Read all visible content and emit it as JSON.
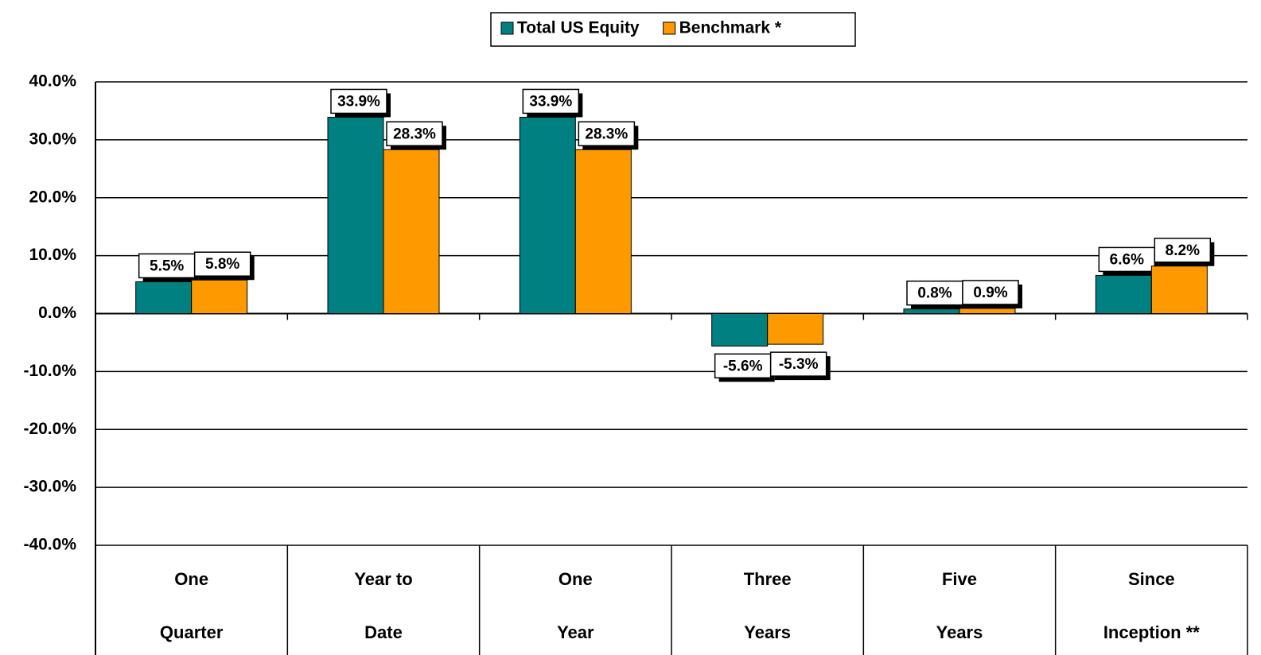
{
  "chart_data": {
    "type": "bar",
    "categories": [
      [
        "One",
        "Quarter"
      ],
      [
        "Year to",
        "Date"
      ],
      [
        "One",
        "Year"
      ],
      [
        "Three",
        "Years"
      ],
      [
        "Five",
        "Years"
      ],
      [
        "Since",
        "Inception **"
      ]
    ],
    "series": [
      {
        "name": "Total US Equity",
        "color": "#008080",
        "values": [
          5.5,
          33.9,
          33.9,
          -5.6,
          0.8,
          6.6
        ],
        "value_labels": [
          "5.5%",
          "33.9%",
          "33.9%",
          "-5.6%",
          "0.8%",
          "6.6%"
        ]
      },
      {
        "name": "Benchmark *",
        "color": "#FF9900",
        "values": [
          5.8,
          28.3,
          28.3,
          -5.3,
          0.9,
          8.2
        ],
        "value_labels": [
          "5.8%",
          "28.3%",
          "28.3%",
          "-5.3%",
          "0.9%",
          "8.2%"
        ]
      }
    ],
    "ylim": [
      -40,
      40
    ],
    "yticks": [
      {
        "value": -40,
        "label": "-40.0%"
      },
      {
        "value": -30,
        "label": "-30.0%"
      },
      {
        "value": -20,
        "label": "-20.0%"
      },
      {
        "value": -10,
        "label": "-10.0%"
      },
      {
        "value": 0,
        "label": "0.0%"
      },
      {
        "value": 10,
        "label": "10.0%"
      },
      {
        "value": 20,
        "label": "20.0%"
      },
      {
        "value": 30,
        "label": "30.0%"
      },
      {
        "value": 40,
        "label": "40.0%"
      }
    ],
    "grid": true,
    "legend": "top"
  }
}
